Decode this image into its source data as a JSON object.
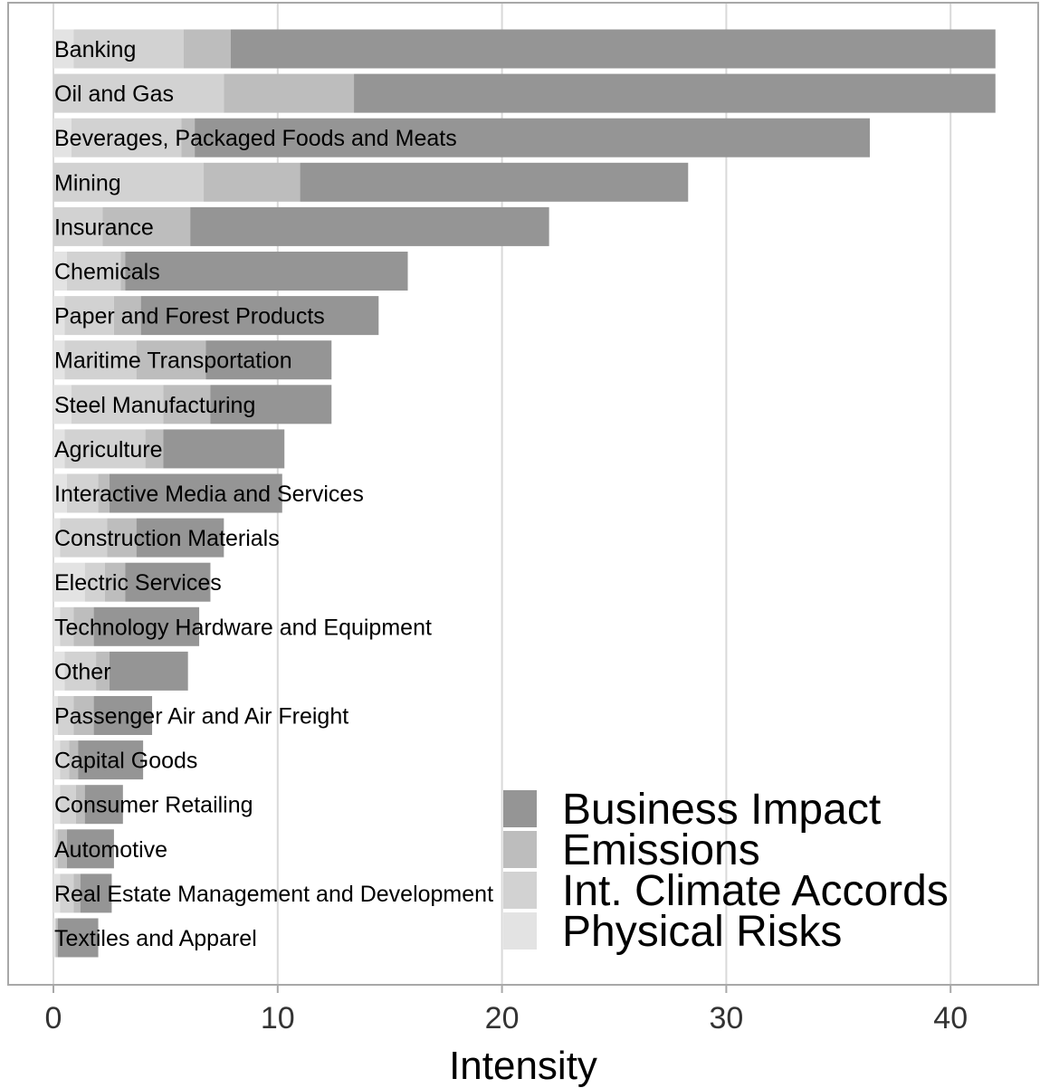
{
  "chart_data": {
    "type": "bar",
    "orientation": "horizontal",
    "stacked": true,
    "xlabel": "Intensity",
    "ylabel": "",
    "xlim": [
      0,
      44
    ],
    "xticks": [
      0,
      10,
      20,
      30,
      40
    ],
    "grid": true,
    "legend_position": "bottom-right",
    "categories": [
      "Banking",
      "Oil and Gas",
      "Beverages, Packaged Foods and Meats",
      "Mining",
      "Insurance",
      "Chemicals",
      "Paper and Forest Products",
      "Maritime Transportation",
      "Steel Manufacturing",
      "Agriculture",
      "Interactive Media and Services",
      "Construction Materials",
      "Electric Services",
      "Technology Hardware and Equipment",
      "Other",
      "Passenger Air and Air Freight",
      "Capital Goods",
      "Consumer Retailing",
      "Automotive",
      "Real Estate Management and Development",
      "Textiles and Apparel"
    ],
    "series": [
      {
        "name": "Physical Risks",
        "color": "#e3e3e3",
        "values": [
          0.9,
          0.0,
          0.8,
          0.0,
          0.0,
          0.6,
          0.5,
          0.5,
          0.8,
          0.5,
          0.6,
          0.3,
          1.4,
          0.3,
          0.5,
          0.2,
          0.3,
          0.3,
          0.1,
          0.3,
          0.1
        ]
      },
      {
        "name": "Int. Climate Accords",
        "color": "#d2d2d2",
        "values": [
          4.9,
          7.6,
          4.9,
          6.7,
          2.2,
          2.4,
          2.2,
          3.2,
          4.1,
          3.6,
          1.4,
          2.1,
          0.9,
          0.6,
          1.4,
          0.7,
          0.4,
          0.7,
          0.1,
          0.6,
          0.0
        ]
      },
      {
        "name": "Emissions",
        "color": "#bdbdbd",
        "values": [
          2.1,
          5.8,
          0.6,
          4.3,
          3.9,
          0.2,
          1.2,
          3.1,
          2.1,
          0.8,
          0.5,
          1.3,
          0.9,
          0.9,
          0.6,
          0.9,
          0.4,
          0.4,
          0.4,
          0.3,
          0.1
        ]
      },
      {
        "name": "Business Impact",
        "color": "#959595",
        "values": [
          34.1,
          28.6,
          30.1,
          17.3,
          16.0,
          12.6,
          10.6,
          5.6,
          5.4,
          5.4,
          7.7,
          3.9,
          3.8,
          4.7,
          3.5,
          2.6,
          2.9,
          1.7,
          2.1,
          1.4,
          1.8
        ]
      }
    ],
    "legend": [
      "Business Impact",
      "Emissions",
      "Int. Climate Accords",
      "Physical Risks"
    ]
  }
}
